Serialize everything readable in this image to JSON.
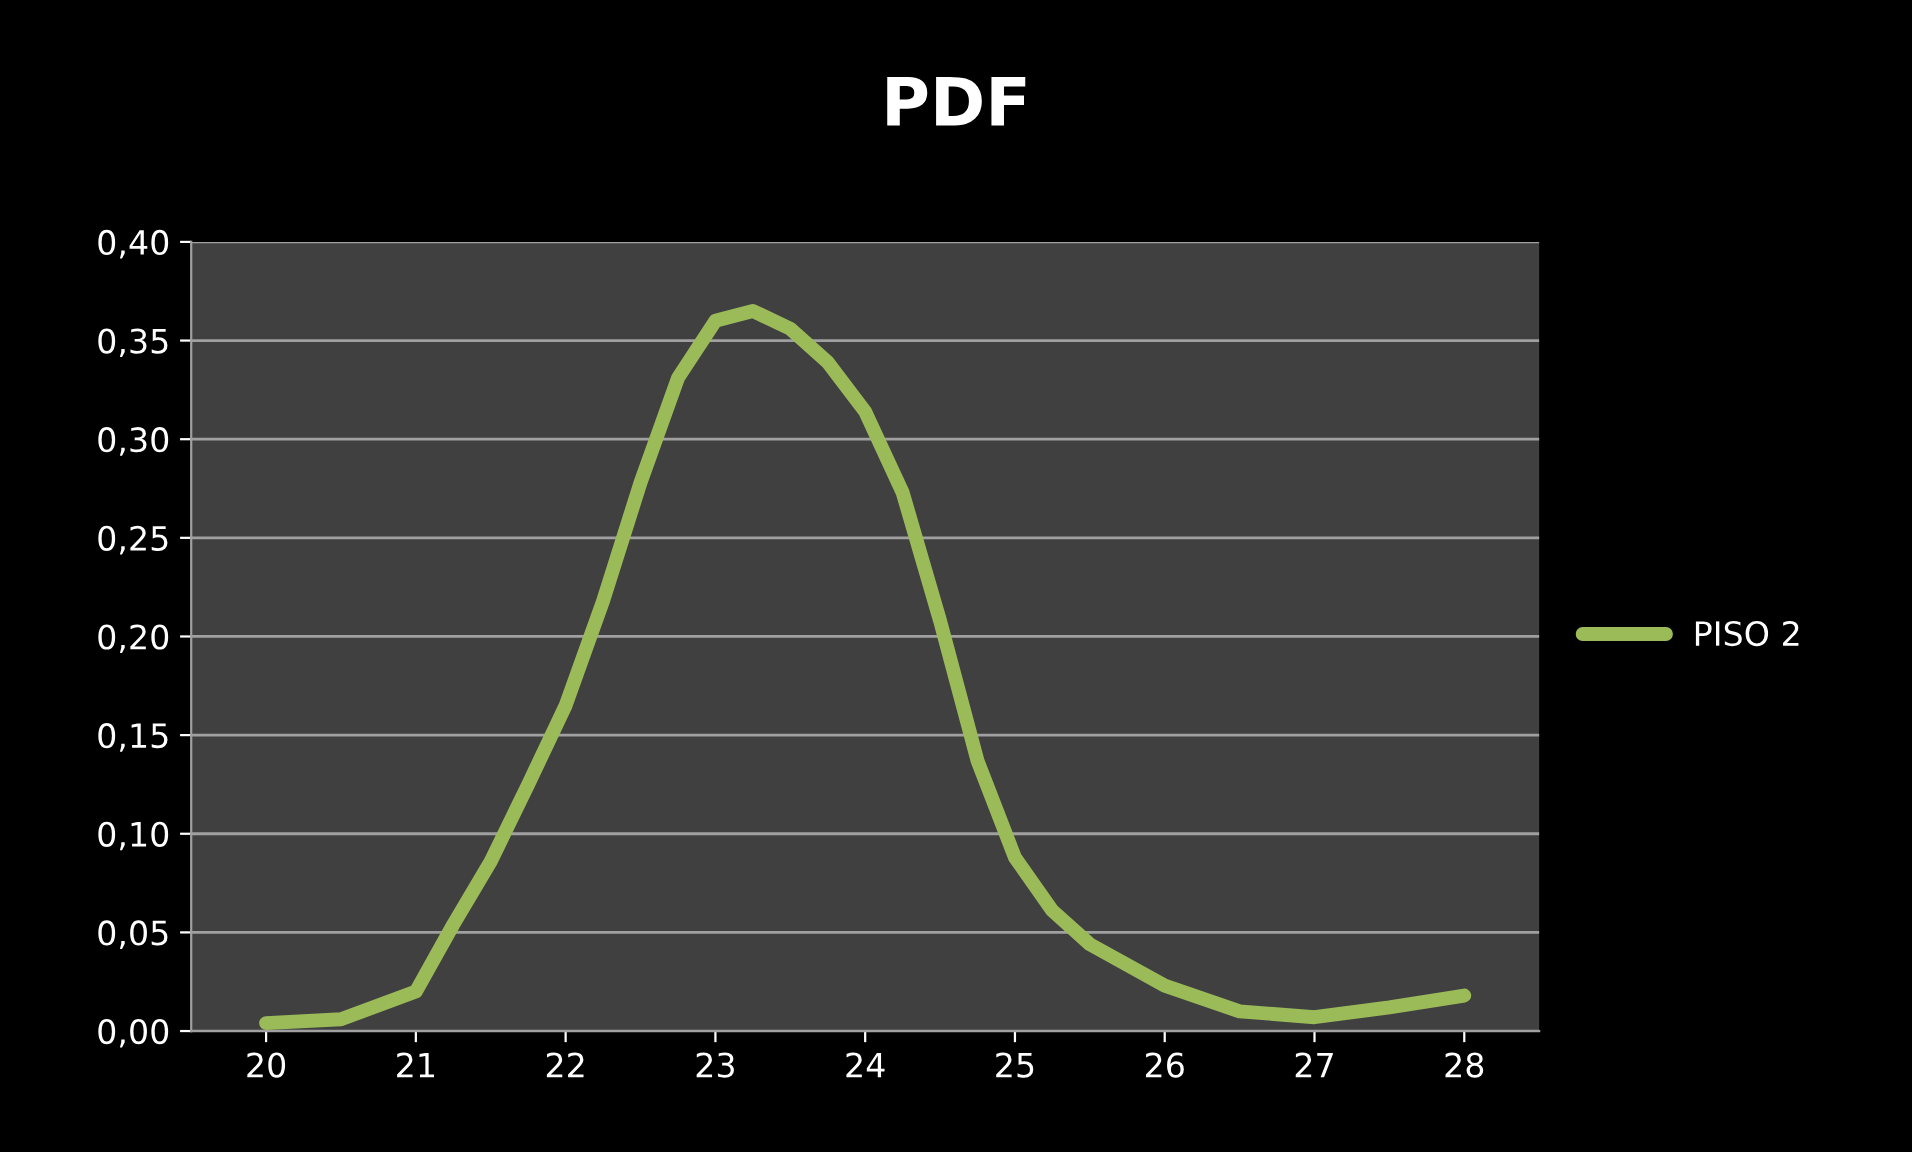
{
  "chart_data": {
    "type": "line",
    "title": "PDF",
    "series": [
      {
        "name": "PISO 2",
        "color": "#9bbb59",
        "x": [
          20,
          20.5,
          21,
          21.25,
          21.5,
          21.75,
          22,
          22.25,
          22.5,
          22.75,
          23,
          23.25,
          23.5,
          23.75,
          24,
          24.25,
          24.5,
          24.75,
          25,
          25.25,
          25.5,
          26,
          26.5,
          27,
          27.5,
          28
        ],
        "values": [
          0.004,
          0.006,
          0.02,
          0.054,
          0.086,
          0.125,
          0.165,
          0.218,
          0.278,
          0.331,
          0.36,
          0.365,
          0.356,
          0.339,
          0.314,
          0.273,
          0.208,
          0.137,
          0.088,
          0.061,
          0.044,
          0.023,
          0.01,
          0.007,
          0.012,
          0.018
        ]
      }
    ],
    "xlim": [
      19.5,
      28.5
    ],
    "xticks": [
      20,
      21,
      22,
      23,
      24,
      25,
      26,
      27,
      28
    ],
    "ylim": [
      0,
      0.4
    ],
    "yticks": [
      {
        "value": 0,
        "label": "0,00"
      },
      {
        "value": 0.05,
        "label": "0,05"
      },
      {
        "value": 0.1,
        "label": "0,10"
      },
      {
        "value": 0.15,
        "label": "0,15"
      },
      {
        "value": 0.2,
        "label": "0,20"
      },
      {
        "value": 0.25,
        "label": "0,25"
      },
      {
        "value": 0.3,
        "label": "0,30"
      },
      {
        "value": 0.35,
        "label": "0,35"
      },
      {
        "value": 0.4,
        "label": "0,40"
      }
    ],
    "grid": "y",
    "legend": "right",
    "marker": "none",
    "line_style": "solid"
  }
}
